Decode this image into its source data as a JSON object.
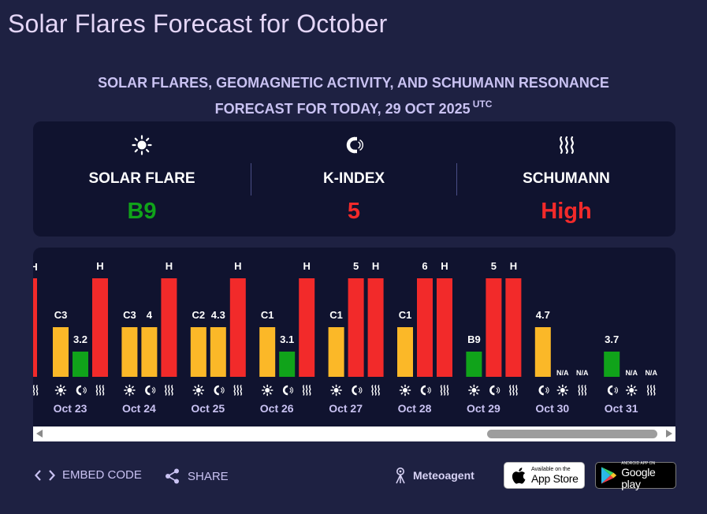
{
  "title": "Solar Flares Forecast for October",
  "subtitle": {
    "line1": "SOLAR FLARES, GEOMAGNETIC ACTIVITY, AND SCHUMANN RESONANCE",
    "line2": "FORECAST FOR TODAY, 29 OCT 2025",
    "tz": "UTC"
  },
  "summary": {
    "solar_flare": {
      "label": "SOLAR FLARE",
      "value": "B9",
      "color": "#10a31a",
      "icon": "sun-icon"
    },
    "k_index": {
      "label": "K-INDEX",
      "value": "5",
      "color": "#f22a2a",
      "icon": "magnet-icon"
    },
    "schumann": {
      "label": "SCHUMANN",
      "value": "High",
      "color": "#f22a2a",
      "icon": "waves-icon"
    }
  },
  "colors": {
    "yellow": "#fbb828",
    "green": "#10a31a",
    "red": "#f22a2a",
    "panel": "#10132f",
    "bg": "#1e2142"
  },
  "chart_data": {
    "type": "bar",
    "series_names": [
      "solar_flare",
      "k_index",
      "schumann"
    ],
    "partial_left_label": "H",
    "days": [
      {
        "date": "Oct 23",
        "icons": [
          "sun-icon",
          "magnet-icon",
          "waves-icon"
        ],
        "bars": [
          {
            "label": "C3",
            "level": 2,
            "color": "#fbb828"
          },
          {
            "label": "3.2",
            "level": 1,
            "color": "#10a31a"
          },
          {
            "label": "H",
            "level": 4,
            "color": "#f22a2a"
          }
        ]
      },
      {
        "date": "Oct 24",
        "icons": [
          "sun-icon",
          "magnet-icon",
          "waves-icon"
        ],
        "bars": [
          {
            "label": "C3",
            "level": 2,
            "color": "#fbb828"
          },
          {
            "label": "4",
            "level": 2,
            "color": "#fbb828"
          },
          {
            "label": "H",
            "level": 4,
            "color": "#f22a2a"
          }
        ]
      },
      {
        "date": "Oct 25",
        "icons": [
          "sun-icon",
          "magnet-icon",
          "waves-icon"
        ],
        "bars": [
          {
            "label": "C2",
            "level": 2,
            "color": "#fbb828"
          },
          {
            "label": "4.3",
            "level": 2,
            "color": "#fbb828"
          },
          {
            "label": "H",
            "level": 4,
            "color": "#f22a2a"
          }
        ]
      },
      {
        "date": "Oct 26",
        "icons": [
          "sun-icon",
          "magnet-icon",
          "waves-icon"
        ],
        "bars": [
          {
            "label": "C1",
            "level": 2,
            "color": "#fbb828"
          },
          {
            "label": "3.1",
            "level": 1,
            "color": "#10a31a"
          },
          {
            "label": "H",
            "level": 4,
            "color": "#f22a2a"
          }
        ]
      },
      {
        "date": "Oct 27",
        "icons": [
          "sun-icon",
          "magnet-icon",
          "waves-icon"
        ],
        "bars": [
          {
            "label": "C1",
            "level": 2,
            "color": "#fbb828"
          },
          {
            "label": "5",
            "level": 4,
            "color": "#f22a2a"
          },
          {
            "label": "H",
            "level": 4,
            "color": "#f22a2a"
          }
        ]
      },
      {
        "date": "Oct 28",
        "icons": [
          "sun-icon",
          "magnet-icon",
          "waves-icon"
        ],
        "bars": [
          {
            "label": "C1",
            "level": 2,
            "color": "#fbb828"
          },
          {
            "label": "6",
            "level": 4,
            "color": "#f22a2a"
          },
          {
            "label": "H",
            "level": 4,
            "color": "#f22a2a"
          }
        ]
      },
      {
        "date": "Oct 29",
        "icons": [
          "sun-icon",
          "magnet-icon",
          "waves-icon"
        ],
        "bars": [
          {
            "label": "B9",
            "level": 1,
            "color": "#10a31a"
          },
          {
            "label": "5",
            "level": 4,
            "color": "#f22a2a"
          },
          {
            "label": "H",
            "level": 4,
            "color": "#f22a2a"
          }
        ]
      },
      {
        "date": "Oct 30",
        "icons": [
          "magnet-icon",
          "sun-icon",
          "waves-icon"
        ],
        "bars": [
          {
            "label": "4.7",
            "level": 2,
            "color": "#fbb828"
          },
          {
            "label": "N/A",
            "level": 0,
            "color": "#10132f"
          },
          {
            "label": "N/A",
            "level": 0,
            "color": "#10132f"
          }
        ]
      },
      {
        "date": "Oct 31",
        "icons": [
          "magnet-icon",
          "sun-icon",
          "waves-icon"
        ],
        "bars": [
          {
            "label": "3.7",
            "level": 1,
            "color": "#10a31a"
          },
          {
            "label": "N/A",
            "level": 0,
            "color": "#10132f"
          },
          {
            "label": "N/A",
            "level": 0,
            "color": "#10132f"
          }
        ]
      }
    ]
  },
  "footer": {
    "embed_label": "EMBED CODE",
    "share_label": "SHARE",
    "brand": "Meteoagent",
    "appstore_small": "Available on the",
    "appstore_big": "App Store",
    "googleplay_small": "ANDROID APP ON",
    "googleplay_big": "Google play"
  }
}
